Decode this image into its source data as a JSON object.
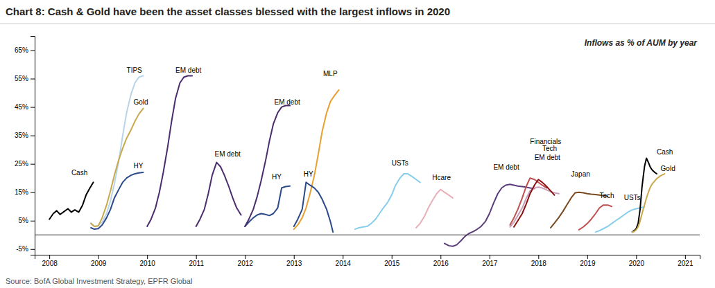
{
  "chart_data": {
    "type": "line",
    "title": "Chart 8: Cash & Gold have been the asset classes blessed with the largest inflows in 2020",
    "subtitle": "Inflows as % of AUM by year",
    "source": "Source: BofA Global Investment Strategy, EPFR Global",
    "grid": false,
    "xlim": [
      2007.7,
      2021.3
    ],
    "xticks": [
      2008,
      2009,
      2010,
      2011,
      2012,
      2013,
      2014,
      2015,
      2016,
      2017,
      2018,
      2019,
      2020,
      2021
    ],
    "ylim": [
      -0.07,
      0.7
    ],
    "yticks": [
      {
        "value": -0.05,
        "label": "-5%"
      },
      {
        "value": 0.05,
        "label": "5%"
      },
      {
        "value": 0.15,
        "label": "15%"
      },
      {
        "value": 0.25,
        "label": "25%"
      },
      {
        "value": 0.35,
        "label": "35%"
      },
      {
        "value": 0.45,
        "label": "45%"
      },
      {
        "value": 0.55,
        "label": "55%"
      },
      {
        "value": 0.65,
        "label": "65%"
      }
    ],
    "series": [
      {
        "color": "#000000",
        "x": [
          2008.0,
          2008.08,
          2008.15,
          2008.22,
          2008.3,
          2008.38,
          2008.45,
          2008.52,
          2008.6,
          2008.68,
          2008.75,
          2008.83,
          2008.9
        ],
        "values": [
          0.055,
          0.075,
          0.085,
          0.072,
          0.082,
          0.092,
          0.08,
          0.088,
          0.08,
          0.105,
          0.14,
          0.165,
          0.185
        ]
      },
      {
        "color": "#b8d4e8",
        "x": [
          2008.85,
          2008.92,
          2009.0,
          2009.08,
          2009.17,
          2009.25,
          2009.33,
          2009.42,
          2009.5,
          2009.58,
          2009.67,
          2009.75,
          2009.83,
          2009.92
        ],
        "values": [
          0.042,
          0.03,
          0.032,
          0.045,
          0.075,
          0.12,
          0.18,
          0.26,
          0.35,
          0.43,
          0.495,
          0.535,
          0.555,
          0.56
        ]
      },
      {
        "color": "#c8a84b",
        "x": [
          2008.85,
          2008.92,
          2009.0,
          2009.08,
          2009.17,
          2009.25,
          2009.33,
          2009.42,
          2009.5,
          2009.58,
          2009.67,
          2009.75,
          2009.83,
          2009.92
        ],
        "values": [
          0.04,
          0.03,
          0.032,
          0.06,
          0.105,
          0.155,
          0.21,
          0.265,
          0.305,
          0.34,
          0.37,
          0.4,
          0.425,
          0.445
        ]
      },
      {
        "color": "#2b4a8b",
        "x": [
          2008.85,
          2008.92,
          2009.0,
          2009.08,
          2009.17,
          2009.25,
          2009.33,
          2009.42,
          2009.5,
          2009.58,
          2009.67,
          2009.75,
          2009.83,
          2009.92
        ],
        "values": [
          0.025,
          0.02,
          0.022,
          0.035,
          0.06,
          0.09,
          0.13,
          0.16,
          0.185,
          0.2,
          0.21,
          0.215,
          0.218,
          0.22
        ]
      },
      {
        "color": "#4b2d6e",
        "x": [
          2010.0,
          2010.08,
          2010.17,
          2010.25,
          2010.33,
          2010.42,
          2010.5,
          2010.58,
          2010.67,
          2010.75,
          2010.83,
          2010.92
        ],
        "values": [
          0.03,
          0.055,
          0.095,
          0.15,
          0.22,
          0.31,
          0.4,
          0.48,
          0.535,
          0.555,
          0.56,
          0.56
        ]
      },
      {
        "color": "#4b2d6e",
        "x": [
          2011.0,
          2011.08,
          2011.17,
          2011.25,
          2011.33,
          2011.42,
          2011.5,
          2011.58,
          2011.67,
          2011.75,
          2011.83,
          2011.92
        ],
        "values": [
          0.03,
          0.055,
          0.09,
          0.145,
          0.21,
          0.255,
          0.24,
          0.21,
          0.17,
          0.13,
          0.095,
          0.07
        ]
      },
      {
        "color": "#2b4a8b",
        "x": [
          2012.0,
          2012.08,
          2012.17,
          2012.25,
          2012.33,
          2012.42,
          2012.5,
          2012.58,
          2012.67,
          2012.75,
          2012.83,
          2012.92
        ],
        "values": [
          0.03,
          0.045,
          0.06,
          0.07,
          0.075,
          0.072,
          0.068,
          0.075,
          0.095,
          0.165,
          0.17,
          0.172
        ]
      },
      {
        "color": "#4b2d6e",
        "x": [
          2012.0,
          2012.08,
          2012.17,
          2012.25,
          2012.33,
          2012.42,
          2012.5,
          2012.58,
          2012.67,
          2012.75,
          2012.83,
          2012.92
        ],
        "values": [
          0.03,
          0.055,
          0.09,
          0.135,
          0.19,
          0.26,
          0.33,
          0.39,
          0.43,
          0.45,
          0.455,
          0.455
        ]
      },
      {
        "color": "#e8a030",
        "x": [
          2013.0,
          2013.08,
          2013.17,
          2013.25,
          2013.33,
          2013.42,
          2013.5,
          2013.58,
          2013.67,
          2013.75,
          2013.83,
          2013.92
        ],
        "values": [
          0.02,
          0.035,
          0.06,
          0.095,
          0.145,
          0.21,
          0.285,
          0.365,
          0.43,
          0.47,
          0.49,
          0.51
        ]
      },
      {
        "color": "#2b4a8b",
        "x": [
          2013.0,
          2013.08,
          2013.17,
          2013.25,
          2013.33,
          2013.42,
          2013.5,
          2013.58,
          2013.67,
          2013.75,
          2013.8
        ],
        "values": [
          0.03,
          0.055,
          0.09,
          0.185,
          0.175,
          0.165,
          0.15,
          0.125,
          0.09,
          0.045,
          0.01
        ]
      },
      {
        "color": "#87ceeb",
        "x": [
          2014.25,
          2014.33,
          2014.42,
          2014.5,
          2014.58,
          2014.67,
          2014.75,
          2014.83,
          2014.92,
          2015.0,
          2015.08,
          2015.17,
          2015.25,
          2015.33,
          2015.42,
          2015.5,
          2015.58
        ],
        "values": [
          0.02,
          0.025,
          0.028,
          0.03,
          0.04,
          0.055,
          0.075,
          0.095,
          0.115,
          0.14,
          0.175,
          0.2,
          0.215,
          0.215,
          0.205,
          0.195,
          0.185
        ]
      },
      {
        "color": "#e8b0b8",
        "x": [
          2015.5,
          2015.58,
          2015.67,
          2015.75,
          2015.83,
          2015.92,
          2016.0,
          2016.08,
          2016.17,
          2016.25
        ],
        "values": [
          0.025,
          0.04,
          0.065,
          0.095,
          0.12,
          0.145,
          0.16,
          0.15,
          0.14,
          0.13
        ]
      },
      {
        "color": "#5a3d7a",
        "x": [
          2016.08,
          2016.17,
          2016.25,
          2016.33,
          2016.42,
          2016.5,
          2016.58,
          2016.67,
          2016.75,
          2016.83,
          2016.92,
          2017.0,
          2017.08,
          2017.17,
          2017.25,
          2017.33,
          2017.42,
          2017.5,
          2017.58,
          2017.67,
          2017.75,
          2017.83,
          2017.92
        ],
        "values": [
          -0.03,
          -0.038,
          -0.04,
          -0.035,
          -0.02,
          -0.005,
          0.005,
          0.012,
          0.02,
          0.03,
          0.048,
          0.075,
          0.11,
          0.145,
          0.165,
          0.175,
          0.178,
          0.175,
          0.172,
          0.17,
          0.168,
          0.165,
          0.163
        ]
      },
      {
        "color": "#c05050",
        "x": [
          2017.42,
          2017.5,
          2017.58,
          2017.67,
          2017.75,
          2017.83,
          2017.92,
          2018.0,
          2018.08,
          2018.17
        ],
        "values": [
          0.035,
          0.06,
          0.09,
          0.13,
          0.17,
          0.2,
          0.195,
          0.185,
          0.175,
          0.165
        ]
      },
      {
        "color": "#c8a0b8",
        "x": [
          2017.42,
          2017.5,
          2017.58,
          2017.67,
          2017.75,
          2017.83,
          2017.92,
          2018.0,
          2018.08,
          2018.17,
          2018.25,
          2018.33,
          2018.42
        ],
        "values": [
          0.028,
          0.045,
          0.068,
          0.095,
          0.128,
          0.155,
          0.165,
          0.168,
          0.165,
          0.158,
          0.152,
          0.148,
          0.145
        ]
      },
      {
        "color": "#8b1010",
        "x": [
          2017.5,
          2017.58,
          2017.67,
          2017.75,
          2017.83,
          2017.92,
          2018.0,
          2018.08,
          2018.17,
          2018.25,
          2018.33
        ],
        "values": [
          0.028,
          0.05,
          0.075,
          0.108,
          0.145,
          0.175,
          0.195,
          0.185,
          0.17,
          0.155,
          0.14
        ]
      },
      {
        "color": "#7a4a20",
        "x": [
          2018.25,
          2018.33,
          2018.42,
          2018.5,
          2018.58,
          2018.67,
          2018.75,
          2018.83,
          2018.92,
          2019.0,
          2019.08,
          2019.17,
          2019.25,
          2019.33,
          2019.42
        ],
        "values": [
          0.025,
          0.042,
          0.062,
          0.082,
          0.105,
          0.13,
          0.148,
          0.15,
          0.148,
          0.145,
          0.143,
          0.142,
          0.14,
          0.138,
          0.135
        ]
      },
      {
        "color": "#c05050",
        "x": [
          2018.83,
          2018.92,
          2019.0,
          2019.08,
          2019.17,
          2019.25,
          2019.33,
          2019.42,
          2019.5
        ],
        "values": [
          0.018,
          0.028,
          0.04,
          0.055,
          0.075,
          0.095,
          0.105,
          0.105,
          0.1
        ]
      },
      {
        "color": "#87ceeb",
        "x": [
          2019.17,
          2019.25,
          2019.33,
          2019.42,
          2019.5,
          2019.58,
          2019.67,
          2019.75,
          2019.83,
          2019.92,
          2020.0,
          2020.08,
          2020.17
        ],
        "values": [
          0.01,
          0.015,
          0.022,
          0.03,
          0.04,
          0.05,
          0.06,
          0.07,
          0.08,
          0.088,
          0.092,
          0.095,
          0.098
        ]
      },
      {
        "color": "#000000",
        "x": [
          2019.92,
          2019.96,
          2020.0,
          2020.04,
          2020.08,
          2020.12,
          2020.17,
          2020.21,
          2020.25,
          2020.29,
          2020.33,
          2020.38,
          2020.42
        ],
        "values": [
          0.01,
          0.015,
          0.022,
          0.04,
          0.09,
          0.17,
          0.24,
          0.27,
          0.255,
          0.238,
          0.228,
          0.22,
          0.215
        ]
      },
      {
        "color": "#c8a84b",
        "x": [
          2019.92,
          2019.96,
          2020.0,
          2020.04,
          2020.08,
          2020.12,
          2020.17,
          2020.21,
          2020.25,
          2020.29,
          2020.33,
          2020.38,
          2020.42,
          2020.5,
          2020.58
        ],
        "values": [
          0.01,
          0.012,
          0.018,
          0.028,
          0.048,
          0.075,
          0.105,
          0.13,
          0.15,
          0.168,
          0.18,
          0.19,
          0.198,
          0.208,
          0.215
        ]
      }
    ],
    "annotations": [
      {
        "text": "Cash",
        "x": 2008.45,
        "y": 0.205
      },
      {
        "text": "TIPS",
        "x": 2009.58,
        "y": 0.565
      },
      {
        "text": "Gold",
        "x": 2009.72,
        "y": 0.455
      },
      {
        "text": "HY",
        "x": 2009.72,
        "y": 0.23
      },
      {
        "text": "EM debt",
        "x": 2010.58,
        "y": 0.565
      },
      {
        "text": "EM debt",
        "x": 2011.38,
        "y": 0.27
      },
      {
        "text": "HY",
        "x": 2012.55,
        "y": 0.19
      },
      {
        "text": "EM debt",
        "x": 2012.6,
        "y": 0.455
      },
      {
        "text": "MLP",
        "x": 2013.6,
        "y": 0.555
      },
      {
        "text": "HY",
        "x": 2013.2,
        "y": 0.2
      },
      {
        "text": "USTs",
        "x": 2015.0,
        "y": 0.24
      },
      {
        "text": "Hcare",
        "x": 2015.83,
        "y": 0.188
      },
      {
        "text": "EM debt",
        "x": 2017.08,
        "y": 0.225
      },
      {
        "text": "Financials",
        "x": 2017.83,
        "y": 0.315
      },
      {
        "text": "EM debt",
        "x": 2017.92,
        "y": 0.258
      },
      {
        "text": "Tech",
        "x": 2018.08,
        "y": 0.29
      },
      {
        "text": "Japan",
        "x": 2018.67,
        "y": 0.2
      },
      {
        "text": "Tech",
        "x": 2019.25,
        "y": 0.125
      },
      {
        "text": "USTs",
        "x": 2019.75,
        "y": 0.118
      },
      {
        "text": "Cash",
        "x": 2020.42,
        "y": 0.278
      },
      {
        "text": "Gold",
        "x": 2020.5,
        "y": 0.22
      }
    ]
  }
}
